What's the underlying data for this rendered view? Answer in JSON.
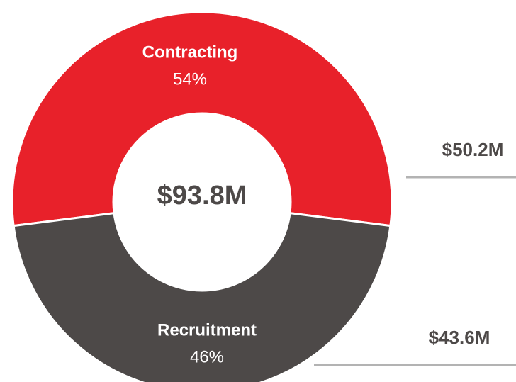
{
  "chart_data": {
    "type": "donut",
    "categories": [
      "Contracting",
      "Recruitment"
    ],
    "values": [
      54,
      46
    ],
    "value_labels": [
      "54%",
      "46%"
    ],
    "amount_labels": [
      "$50.2M",
      "$43.6M"
    ],
    "colors": [
      "#e8212a",
      "#4d4948"
    ],
    "center_label": "$93.8M"
  }
}
